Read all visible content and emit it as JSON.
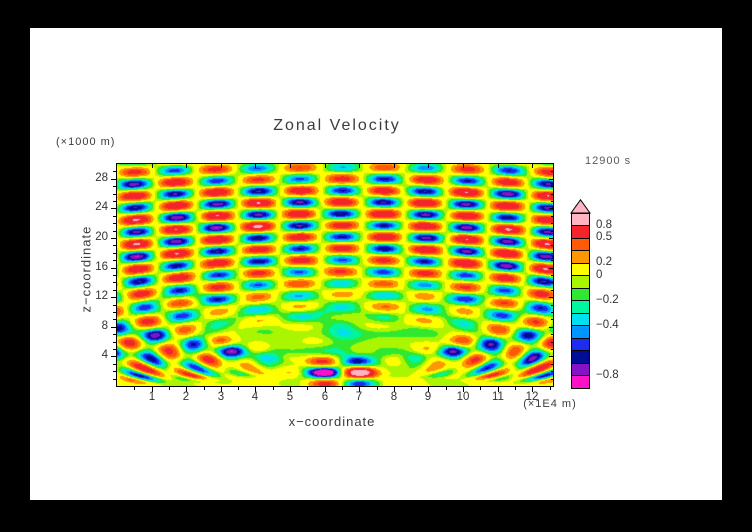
{
  "window": {
    "frame_color": "#000000",
    "canvas_color": "#ffffff"
  },
  "header": {
    "title": "Zonal Velocity",
    "timestamp": "12900 s"
  },
  "axes": {
    "x": {
      "label": "x−coordinate",
      "unit": "(×1E4 m)",
      "range": [
        0,
        12.6
      ],
      "major_ticks": [
        1,
        2,
        3,
        4,
        5,
        6,
        7,
        8,
        9,
        10,
        11,
        12
      ],
      "minor_step": 0.5
    },
    "y": {
      "label": "z−coordinate",
      "unit": "(×1000 m)",
      "range": [
        0,
        30
      ],
      "major_ticks": [
        4,
        8,
        12,
        16,
        20,
        24,
        28
      ],
      "minor_step": 1
    }
  },
  "colorbar": {
    "position": "right",
    "arrow_color": "#ffb3c3",
    "border_color": "#000000",
    "boxes": [
      {
        "color": "#ffb3c3",
        "label": "0.8"
      },
      {
        "color": "#f5242c",
        "label": "0.5"
      },
      {
        "color": "#ff5a07",
        "label": null
      },
      {
        "color": "#ff9800",
        "label": "0.2"
      },
      {
        "color": "#ffff00",
        "label": "0"
      },
      {
        "color": "#aaf500",
        "label": null
      },
      {
        "color": "#2fe82f",
        "label": "−0.2"
      },
      {
        "color": "#00f5a0",
        "label": null
      },
      {
        "color": "#00e0ee",
        "label": "−0.4"
      },
      {
        "color": "#0096ff",
        "label": null
      },
      {
        "color": "#1c2cf0",
        "label": null
      },
      {
        "color": "#000e96",
        "label": null
      },
      {
        "color": "#8412c6",
        "label": "−0.8"
      },
      {
        "color": "#fb12c6",
        "label": null
      }
    ]
  },
  "chart_data": {
    "type": "heatmap",
    "title": "Zonal Velocity",
    "time_label": "12900 s",
    "xlabel": "x−coordinate (×1E4 m)",
    "ylabel": "z−coordinate (×1000 m)",
    "xlim": [
      0,
      12.6
    ],
    "ylim": [
      0,
      30
    ],
    "legend_position": "right",
    "grid": false,
    "levels": [
      0.8,
      0.5,
      0.35,
      0.2,
      0,
      -0.1,
      -0.2,
      -0.3,
      -0.4,
      -0.5,
      -0.6,
      -0.7,
      -0.8
    ],
    "colors": [
      "#ffb3c3",
      "#f5242c",
      "#ff5a07",
      "#ff9800",
      "#ffff00",
      "#aaf500",
      "#2fe82f",
      "#00f5a0",
      "#00e0ee",
      "#0096ff",
      "#1c2cf0",
      "#000e96",
      "#8412c6",
      "#fb12c6"
    ],
    "description": "Internal gravity-wave fan radiating from an oscillating source near x=6.5, z=2: arcs of alternating positive (orange/red) and negative (cyan/blue) zonal-velocity cells fill the region above z≈10, an intense dipole core (pink/magenta extremes) sits at the source, and weak yellow/green horizontal banding occupies the lower layer.",
    "field_model": {
      "source": {
        "x": 6.5,
        "z": 1.8
      },
      "fan": {
        "kr": 2.0,
        "phase": -0.56,
        "ks": 2.6,
        "gain": 1.15,
        "cap": 0.78
      },
      "envelope": {
        "inner_fade": [
          5.0,
          8.5
        ],
        "lobes": [
          {
            "amp": 0.45,
            "r": 13,
            "w": 9
          },
          {
            "amp": 0.95,
            "r": 23,
            "w": 9
          }
        ],
        "angular": {
          "base": 0.55,
          "slope": 0.45,
          "span": 0.7
        },
        "side_lobe": {
          "amp": 0.6,
          "r": 5.2,
          "w": 2.6,
          "theta_on": [
            0.45,
            0.8
          ]
        },
        "below_cut": [
          1.62,
          1.92
        ]
      },
      "dipole": {
        "amp": 1.45,
        "wx": 1.15,
        "wz": 2.1,
        "kx": 2.5,
        "kz": 1.8
      },
      "plume": {
        "amp": -0.2,
        "w": 0.5,
        "z_on": [
          2.2,
          3.5
        ],
        "z_off": [
          8.5,
          11.0
        ]
      },
      "stripes": [
        {
          "z": 4.6,
          "w": 0.8,
          "a": 0.2
        },
        {
          "z": 7.1,
          "w": 0.8,
          "a": 0.16
        },
        {
          "z": 9.8,
          "w": 0.9,
          "a": 0.18
        },
        {
          "z": 11.9,
          "w": 0.7,
          "a": 0.13
        }
      ],
      "background": {
        "a1": 0.05,
        "a2": 0.03,
        "bias": 0.02
      }
    }
  }
}
